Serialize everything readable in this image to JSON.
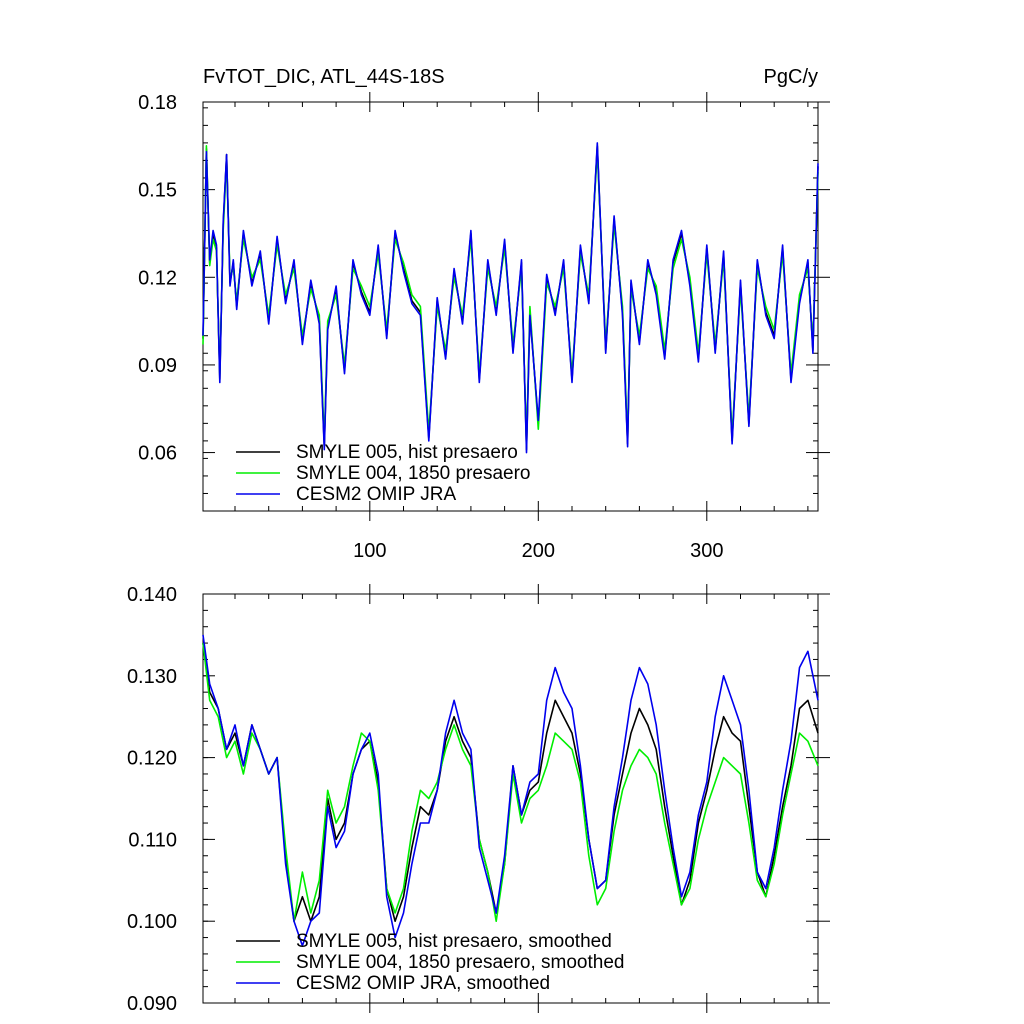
{
  "colors": {
    "SMYLE 005": "#000000",
    "SMYLE 004": "#00ee00",
    "CESM2 OMIP JRA": "#0000ee"
  },
  "chart_data": [
    {
      "type": "line",
      "title": "FvTOT_DIC, ATL_44S-18S",
      "units": "PgC/y",
      "xlim": [
        1,
        366
      ],
      "ylim": [
        0.04,
        0.18
      ],
      "x_ticks": [
        100,
        200,
        300
      ],
      "x_tick_labels": [
        "100",
        "200",
        "300"
      ],
      "y_ticks": [
        0.06,
        0.09,
        0.12,
        0.15,
        0.18
      ],
      "y_tick_labels": [
        "0.06",
        "0.09",
        "0.12",
        "0.15",
        "0.18"
      ],
      "legend_position": "bottom-left",
      "series": [
        {
          "name": "SMYLE 005, hist presaero",
          "color": "#000000",
          "x": [
            1,
            3,
            5,
            7,
            9,
            11,
            13,
            15,
            17,
            19,
            21,
            25,
            30,
            35,
            40,
            45,
            50,
            55,
            60,
            65,
            70,
            73,
            75,
            80,
            85,
            90,
            95,
            100,
            105,
            110,
            115,
            120,
            125,
            130,
            135,
            140,
            145,
            150,
            155,
            160,
            165,
            170,
            175,
            180,
            185,
            190,
            193,
            195,
            200,
            205,
            210,
            215,
            220,
            225,
            230,
            235,
            240,
            245,
            250,
            253,
            255,
            260,
            265,
            270,
            275,
            280,
            285,
            290,
            295,
            300,
            305,
            310,
            315,
            320,
            325,
            330,
            335,
            340,
            345,
            350,
            355,
            360,
            363,
            366
          ],
          "y": [
            0.099,
            0.164,
            0.125,
            0.135,
            0.13,
            0.085,
            0.138,
            0.162,
            0.118,
            0.125,
            0.11,
            0.135,
            0.118,
            0.128,
            0.105,
            0.133,
            0.112,
            0.125,
            0.098,
            0.118,
            0.105,
            0.062,
            0.103,
            0.116,
            0.088,
            0.125,
            0.115,
            0.108,
            0.13,
            0.1,
            0.135,
            0.123,
            0.112,
            0.108,
            0.065,
            0.112,
            0.093,
            0.122,
            0.105,
            0.135,
            0.085,
            0.125,
            0.108,
            0.132,
            0.095,
            0.125,
            0.061,
            0.108,
            0.07,
            0.12,
            0.108,
            0.125,
            0.085,
            0.13,
            0.112,
            0.165,
            0.095,
            0.14,
            0.108,
            0.063,
            0.118,
            0.098,
            0.125,
            0.115,
            0.093,
            0.125,
            0.135,
            0.118,
            0.092,
            0.13,
            0.095,
            0.128,
            0.064,
            0.118,
            0.07,
            0.125,
            0.108,
            0.1,
            0.13,
            0.085,
            0.112,
            0.125,
            0.095,
            0.158
          ]
        },
        {
          "name": "SMYLE 004, 1850 presaero",
          "color": "#00ee00",
          "x": [
            1,
            3,
            5,
            7,
            9,
            11,
            13,
            15,
            17,
            19,
            21,
            25,
            30,
            35,
            40,
            45,
            50,
            55,
            60,
            65,
            70,
            73,
            75,
            80,
            85,
            90,
            95,
            100,
            105,
            110,
            115,
            120,
            125,
            130,
            135,
            140,
            145,
            150,
            155,
            160,
            165,
            170,
            175,
            180,
            185,
            190,
            193,
            195,
            200,
            205,
            210,
            215,
            220,
            225,
            230,
            235,
            240,
            245,
            250,
            253,
            255,
            260,
            265,
            270,
            275,
            280,
            285,
            290,
            295,
            300,
            305,
            310,
            315,
            320,
            325,
            330,
            335,
            340,
            345,
            350,
            355,
            360,
            363,
            366
          ],
          "y": [
            0.097,
            0.165,
            0.124,
            0.133,
            0.129,
            0.087,
            0.136,
            0.16,
            0.12,
            0.123,
            0.112,
            0.133,
            0.12,
            0.126,
            0.107,
            0.131,
            0.114,
            0.123,
            0.1,
            0.116,
            0.107,
            0.064,
            0.105,
            0.114,
            0.09,
            0.123,
            0.117,
            0.11,
            0.128,
            0.102,
            0.133,
            0.125,
            0.114,
            0.11,
            0.067,
            0.11,
            0.095,
            0.12,
            0.107,
            0.133,
            0.087,
            0.123,
            0.11,
            0.13,
            0.097,
            0.123,
            0.063,
            0.11,
            0.068,
            0.118,
            0.11,
            0.123,
            0.087,
            0.128,
            0.114,
            0.163,
            0.097,
            0.138,
            0.11,
            0.065,
            0.116,
            0.1,
            0.123,
            0.117,
            0.095,
            0.123,
            0.133,
            0.12,
            0.094,
            0.128,
            0.097,
            0.126,
            0.066,
            0.116,
            0.072,
            0.123,
            0.11,
            0.102,
            0.128,
            0.087,
            0.114,
            0.123,
            0.097,
            0.156
          ]
        },
        {
          "name": "CESM2 OMIP JRA",
          "color": "#0000ee",
          "x": [
            1,
            3,
            5,
            7,
            9,
            11,
            13,
            15,
            17,
            19,
            21,
            25,
            30,
            35,
            40,
            45,
            50,
            55,
            60,
            65,
            70,
            73,
            75,
            80,
            85,
            90,
            95,
            100,
            105,
            110,
            115,
            120,
            125,
            130,
            135,
            140,
            145,
            150,
            155,
            160,
            165,
            170,
            175,
            180,
            185,
            190,
            193,
            195,
            200,
            205,
            210,
            215,
            220,
            225,
            230,
            235,
            240,
            245,
            250,
            253,
            255,
            260,
            265,
            270,
            275,
            280,
            285,
            290,
            295,
            300,
            305,
            310,
            315,
            320,
            325,
            330,
            335,
            340,
            345,
            350,
            355,
            360,
            363,
            366
          ],
          "y": [
            0.1,
            0.163,
            0.126,
            0.136,
            0.131,
            0.084,
            0.139,
            0.162,
            0.117,
            0.126,
            0.109,
            0.136,
            0.117,
            0.129,
            0.104,
            0.134,
            0.111,
            0.126,
            0.097,
            0.119,
            0.104,
            0.061,
            0.102,
            0.117,
            0.087,
            0.126,
            0.114,
            0.107,
            0.131,
            0.099,
            0.136,
            0.122,
            0.111,
            0.107,
            0.064,
            0.113,
            0.092,
            0.123,
            0.104,
            0.136,
            0.084,
            0.126,
            0.107,
            0.133,
            0.094,
            0.126,
            0.06,
            0.107,
            0.071,
            0.121,
            0.107,
            0.126,
            0.084,
            0.131,
            0.111,
            0.166,
            0.094,
            0.141,
            0.107,
            0.062,
            0.119,
            0.097,
            0.126,
            0.114,
            0.092,
            0.126,
            0.136,
            0.117,
            0.091,
            0.131,
            0.094,
            0.129,
            0.063,
            0.119,
            0.069,
            0.126,
            0.107,
            0.099,
            0.131,
            0.084,
            0.111,
            0.126,
            0.094,
            0.159
          ]
        }
      ]
    },
    {
      "type": "line",
      "title": "",
      "units": "",
      "xlim": [
        1,
        366
      ],
      "ylim": [
        0.09,
        0.14
      ],
      "x_ticks": [
        100,
        200,
        300
      ],
      "x_tick_labels": [],
      "y_ticks": [
        0.09,
        0.1,
        0.11,
        0.12,
        0.13,
        0.14
      ],
      "y_tick_labels": [
        "0.090",
        "0.100",
        "0.110",
        "0.120",
        "0.130",
        "0.140"
      ],
      "legend_position": "bottom-left",
      "series": [
        {
          "name": "SMYLE 005, hist presaero, smoothed",
          "color": "#000000",
          "x": [
            1,
            5,
            10,
            15,
            20,
            25,
            30,
            35,
            40,
            45,
            50,
            55,
            60,
            65,
            70,
            75,
            80,
            85,
            90,
            95,
            100,
            105,
            110,
            115,
            120,
            125,
            130,
            135,
            140,
            145,
            150,
            155,
            160,
            165,
            170,
            175,
            180,
            185,
            190,
            195,
            200,
            205,
            210,
            215,
            220,
            225,
            230,
            235,
            240,
            245,
            250,
            255,
            260,
            265,
            270,
            275,
            280,
            285,
            290,
            295,
            300,
            305,
            310,
            315,
            320,
            325,
            330,
            335,
            340,
            345,
            350,
            355,
            360,
            366
          ],
          "y": [
            0.134,
            0.128,
            0.126,
            0.121,
            0.123,
            0.119,
            0.124,
            0.121,
            0.118,
            0.12,
            0.108,
            0.1,
            0.103,
            0.1,
            0.103,
            0.115,
            0.11,
            0.112,
            0.118,
            0.121,
            0.122,
            0.117,
            0.104,
            0.1,
            0.103,
            0.109,
            0.114,
            0.113,
            0.116,
            0.122,
            0.125,
            0.122,
            0.12,
            0.11,
            0.106,
            0.101,
            0.107,
            0.119,
            0.113,
            0.116,
            0.117,
            0.123,
            0.127,
            0.125,
            0.123,
            0.118,
            0.11,
            0.104,
            0.105,
            0.113,
            0.118,
            0.123,
            0.126,
            0.124,
            0.121,
            0.114,
            0.108,
            0.102,
            0.105,
            0.112,
            0.116,
            0.121,
            0.125,
            0.123,
            0.122,
            0.114,
            0.106,
            0.103,
            0.108,
            0.114,
            0.119,
            0.126,
            0.127,
            0.123
          ]
        },
        {
          "name": "SMYLE 004, 1850 presaero, smoothed",
          "color": "#00ee00",
          "x": [
            1,
            5,
            10,
            15,
            20,
            25,
            30,
            35,
            40,
            45,
            50,
            55,
            60,
            65,
            70,
            75,
            80,
            85,
            90,
            95,
            100,
            105,
            110,
            115,
            120,
            125,
            130,
            135,
            140,
            145,
            150,
            155,
            160,
            165,
            170,
            175,
            180,
            185,
            190,
            195,
            200,
            205,
            210,
            215,
            220,
            225,
            230,
            235,
            240,
            245,
            250,
            255,
            260,
            265,
            270,
            275,
            280,
            285,
            290,
            295,
            300,
            305,
            310,
            315,
            320,
            325,
            330,
            335,
            340,
            345,
            350,
            355,
            360,
            366
          ],
          "y": [
            0.134,
            0.127,
            0.125,
            0.12,
            0.122,
            0.118,
            0.123,
            0.121,
            0.118,
            0.12,
            0.109,
            0.1,
            0.106,
            0.101,
            0.105,
            0.116,
            0.112,
            0.114,
            0.119,
            0.123,
            0.122,
            0.116,
            0.104,
            0.101,
            0.104,
            0.111,
            0.116,
            0.115,
            0.117,
            0.121,
            0.124,
            0.121,
            0.119,
            0.11,
            0.106,
            0.1,
            0.107,
            0.118,
            0.112,
            0.115,
            0.116,
            0.119,
            0.123,
            0.122,
            0.121,
            0.117,
            0.108,
            0.102,
            0.104,
            0.111,
            0.116,
            0.119,
            0.121,
            0.12,
            0.118,
            0.112,
            0.107,
            0.102,
            0.104,
            0.11,
            0.114,
            0.117,
            0.12,
            0.119,
            0.118,
            0.112,
            0.105,
            0.103,
            0.107,
            0.113,
            0.118,
            0.123,
            0.122,
            0.119
          ]
        },
        {
          "name": "CESM2 OMIP JRA, smoothed",
          "color": "#0000ee",
          "x": [
            1,
            5,
            10,
            15,
            20,
            25,
            30,
            35,
            40,
            45,
            50,
            55,
            60,
            65,
            70,
            75,
            80,
            85,
            90,
            95,
            100,
            105,
            110,
            115,
            120,
            125,
            130,
            135,
            140,
            145,
            150,
            155,
            160,
            165,
            170,
            175,
            180,
            185,
            190,
            195,
            200,
            205,
            210,
            215,
            220,
            225,
            230,
            235,
            240,
            245,
            250,
            255,
            260,
            265,
            270,
            275,
            280,
            285,
            290,
            295,
            300,
            305,
            310,
            315,
            320,
            325,
            330,
            335,
            340,
            345,
            350,
            355,
            360,
            366
          ],
          "y": [
            0.135,
            0.129,
            0.126,
            0.121,
            0.124,
            0.119,
            0.124,
            0.121,
            0.118,
            0.12,
            0.107,
            0.1,
            0.097,
            0.1,
            0.101,
            0.114,
            0.109,
            0.111,
            0.118,
            0.121,
            0.123,
            0.118,
            0.103,
            0.098,
            0.101,
            0.107,
            0.112,
            0.112,
            0.116,
            0.123,
            0.127,
            0.123,
            0.121,
            0.109,
            0.105,
            0.101,
            0.108,
            0.119,
            0.113,
            0.117,
            0.118,
            0.127,
            0.131,
            0.128,
            0.126,
            0.119,
            0.11,
            0.104,
            0.105,
            0.114,
            0.12,
            0.127,
            0.131,
            0.129,
            0.124,
            0.116,
            0.109,
            0.103,
            0.106,
            0.113,
            0.117,
            0.125,
            0.13,
            0.127,
            0.124,
            0.116,
            0.106,
            0.104,
            0.109,
            0.116,
            0.122,
            0.131,
            0.133,
            0.127
          ]
        }
      ]
    }
  ]
}
